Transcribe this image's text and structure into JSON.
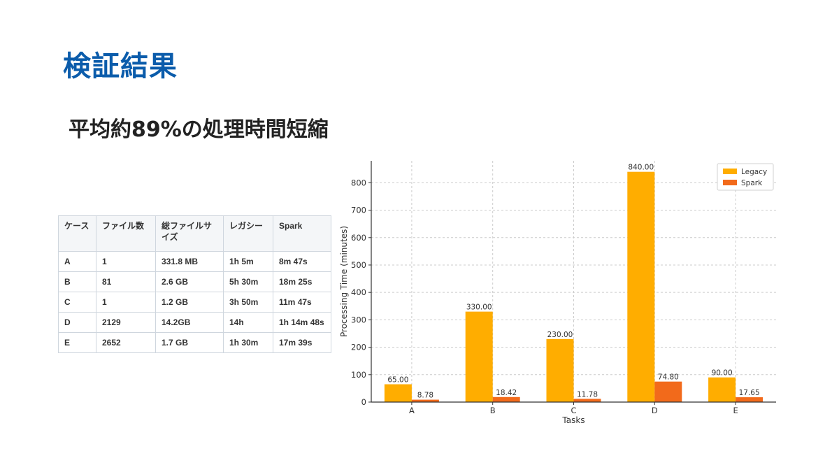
{
  "slide": {
    "title": "検証結果",
    "subtitle": "平均約89%の処理時間短縮"
  },
  "table": {
    "headers": [
      "ケース",
      "ファイル数",
      "総ファイルサイズ",
      "レガシー",
      "Spark"
    ],
    "rows": [
      [
        "A",
        "1",
        "331.8 MB",
        "1h 5m",
        "8m 47s"
      ],
      [
        "B",
        "81",
        "2.6 GB",
        "5h 30m",
        "18m 25s"
      ],
      [
        "C",
        "1",
        "1.2 GB",
        "3h 50m",
        "11m 47s"
      ],
      [
        "D",
        "2129",
        "14.2GB",
        "14h",
        "1h 14m 48s"
      ],
      [
        "E",
        "2652",
        "1.7 GB",
        "1h 30m",
        "17m 39s"
      ]
    ]
  },
  "chart_data": {
    "type": "bar",
    "xlabel": "Tasks",
    "ylabel": "Processing Time (minutes)",
    "categories": [
      "A",
      "B",
      "C",
      "D",
      "E"
    ],
    "series": [
      {
        "name": "Legacy",
        "values": [
          65.0,
          330.0,
          230.0,
          840.0,
          90.0
        ],
        "labels": [
          "65.00",
          "330.00",
          "230.00",
          "840.00",
          "90.00"
        ],
        "color": "#ffad00"
      },
      {
        "name": "Spark",
        "values": [
          8.78,
          18.42,
          11.78,
          74.8,
          17.65
        ],
        "labels": [
          "8.78",
          "18.42",
          "11.78",
          "74.80",
          "17.65"
        ],
        "color": "#f26a1b"
      }
    ],
    "ylim": [
      0,
      880
    ],
    "yticks": [
      0,
      100,
      200,
      300,
      400,
      500,
      600,
      700,
      800
    ],
    "grid": true,
    "legend_position": "top-right"
  }
}
